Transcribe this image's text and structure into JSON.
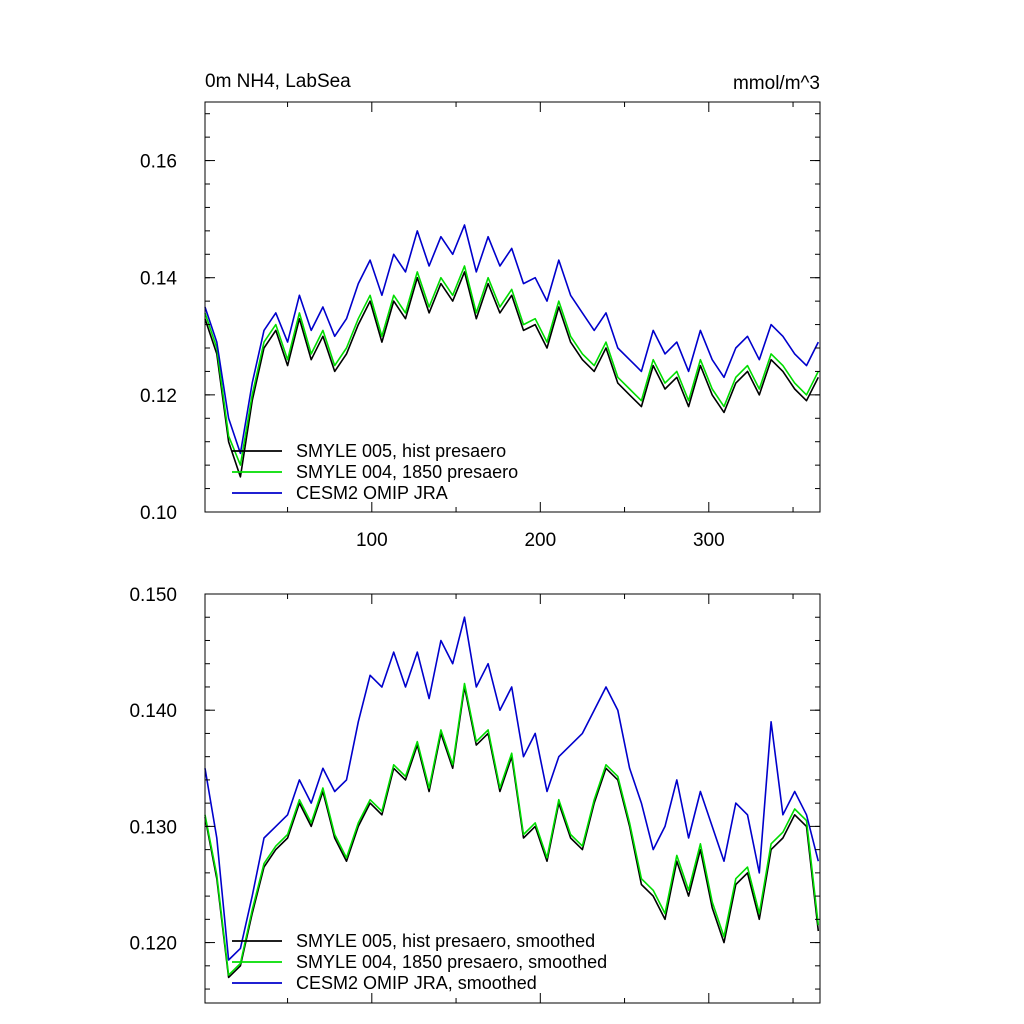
{
  "chart_data": [
    {
      "type": "line",
      "title": "0m NH4, LabSea",
      "units": "mmol/m^3",
      "xlabel": "",
      "ylabel": "",
      "xlim": [
        1,
        366
      ],
      "ylim": [
        0.1,
        0.17
      ],
      "yticks": [
        "0.10",
        "0.12",
        "0.14",
        "0.16"
      ],
      "xticks": [
        "100",
        "200",
        "300"
      ],
      "grid": false,
      "legend_position": "bottom-left",
      "series": [
        {
          "name": "SMYLE 005, hist presaero",
          "color": "#000000",
          "x": [
            1,
            8,
            15,
            22,
            29,
            36,
            43,
            50,
            57,
            64,
            71,
            78,
            85,
            92,
            99,
            106,
            113,
            120,
            127,
            134,
            141,
            148,
            155,
            162,
            169,
            176,
            183,
            190,
            197,
            204,
            211,
            218,
            225,
            232,
            239,
            246,
            253,
            260,
            267,
            274,
            281,
            288,
            295,
            302,
            309,
            316,
            323,
            330,
            337,
            344,
            351,
            358,
            365
          ],
          "values": [
            0.133,
            0.127,
            0.112,
            0.106,
            0.119,
            0.128,
            0.131,
            0.125,
            0.133,
            0.126,
            0.13,
            0.124,
            0.127,
            0.132,
            0.136,
            0.129,
            0.136,
            0.133,
            0.14,
            0.134,
            0.139,
            0.136,
            0.141,
            0.133,
            0.139,
            0.134,
            0.137,
            0.131,
            0.132,
            0.128,
            0.135,
            0.129,
            0.126,
            0.124,
            0.128,
            0.122,
            0.12,
            0.118,
            0.125,
            0.121,
            0.123,
            0.118,
            0.125,
            0.12,
            0.117,
            0.122,
            0.124,
            0.12,
            0.126,
            0.124,
            0.121,
            0.119,
            0.123
          ]
        },
        {
          "name": "SMYLE 004, 1850 presaero",
          "color": "#00dd00",
          "x": [
            1,
            8,
            15,
            22,
            29,
            36,
            43,
            50,
            57,
            64,
            71,
            78,
            85,
            92,
            99,
            106,
            113,
            120,
            127,
            134,
            141,
            148,
            155,
            162,
            169,
            176,
            183,
            190,
            197,
            204,
            211,
            218,
            225,
            232,
            239,
            246,
            253,
            260,
            267,
            274,
            281,
            288,
            295,
            302,
            309,
            316,
            323,
            330,
            337,
            344,
            351,
            358,
            365
          ],
          "values": [
            0.134,
            0.128,
            0.113,
            0.108,
            0.12,
            0.129,
            0.132,
            0.126,
            0.134,
            0.127,
            0.131,
            0.125,
            0.128,
            0.133,
            0.137,
            0.13,
            0.137,
            0.134,
            0.141,
            0.135,
            0.14,
            0.137,
            0.142,
            0.134,
            0.14,
            0.135,
            0.138,
            0.132,
            0.133,
            0.129,
            0.136,
            0.13,
            0.127,
            0.125,
            0.129,
            0.123,
            0.121,
            0.119,
            0.126,
            0.122,
            0.124,
            0.119,
            0.126,
            0.121,
            0.118,
            0.123,
            0.125,
            0.121,
            0.127,
            0.125,
            0.122,
            0.12,
            0.124
          ]
        },
        {
          "name": "CESM2 OMIP JRA",
          "color": "#0000cc",
          "x": [
            1,
            8,
            15,
            22,
            29,
            36,
            43,
            50,
            57,
            64,
            71,
            78,
            85,
            92,
            99,
            106,
            113,
            120,
            127,
            134,
            141,
            148,
            155,
            162,
            169,
            176,
            183,
            190,
            197,
            204,
            211,
            218,
            225,
            232,
            239,
            246,
            253,
            260,
            267,
            274,
            281,
            288,
            295,
            302,
            309,
            316,
            323,
            330,
            337,
            344,
            351,
            358,
            365
          ],
          "values": [
            0.135,
            0.129,
            0.116,
            0.11,
            0.122,
            0.131,
            0.134,
            0.129,
            0.137,
            0.131,
            0.135,
            0.13,
            0.133,
            0.139,
            0.143,
            0.137,
            0.144,
            0.141,
            0.148,
            0.142,
            0.147,
            0.144,
            0.149,
            0.141,
            0.147,
            0.142,
            0.145,
            0.139,
            0.14,
            0.136,
            0.143,
            0.137,
            0.134,
            0.131,
            0.134,
            0.128,
            0.126,
            0.124,
            0.131,
            0.127,
            0.129,
            0.124,
            0.131,
            0.126,
            0.123,
            0.128,
            0.13,
            0.126,
            0.132,
            0.13,
            0.127,
            0.125,
            0.129
          ]
        }
      ]
    },
    {
      "type": "line",
      "title": "",
      "xlabel": "",
      "ylabel": "",
      "xlim": [
        1,
        366
      ],
      "ylim": [
        0.1148,
        0.15
      ],
      "yticks": [
        "0.120",
        "0.130",
        "0.140",
        "0.150"
      ],
      "grid": false,
      "legend_position": "bottom-left",
      "series": [
        {
          "name": "SMYLE 005, hist presaero, smoothed",
          "color": "#000000",
          "x": [
            1,
            8,
            15,
            22,
            29,
            36,
            43,
            50,
            57,
            64,
            71,
            78,
            85,
            92,
            99,
            106,
            113,
            120,
            127,
            134,
            141,
            148,
            155,
            162,
            169,
            176,
            183,
            190,
            197,
            204,
            211,
            218,
            225,
            232,
            239,
            246,
            253,
            260,
            267,
            274,
            281,
            288,
            295,
            302,
            309,
            316,
            323,
            330,
            337,
            344,
            351,
            358,
            365
          ],
          "values": [
            0.1308,
            0.1255,
            0.117,
            0.118,
            0.1225,
            0.1265,
            0.128,
            0.129,
            0.132,
            0.13,
            0.133,
            0.129,
            0.127,
            0.13,
            0.132,
            0.131,
            0.135,
            0.134,
            0.137,
            0.133,
            0.138,
            0.135,
            0.142,
            0.137,
            0.138,
            0.133,
            0.136,
            0.129,
            0.13,
            0.127,
            0.132,
            0.129,
            0.128,
            0.132,
            0.135,
            0.134,
            0.13,
            0.125,
            0.124,
            0.122,
            0.127,
            0.124,
            0.128,
            0.123,
            0.12,
            0.125,
            0.126,
            0.122,
            0.128,
            0.129,
            0.131,
            0.13,
            0.121
          ]
        },
        {
          "name": "SMYLE 004, 1850 presaero, smoothed",
          "color": "#00dd00",
          "x": [
            1,
            8,
            15,
            22,
            29,
            36,
            43,
            50,
            57,
            64,
            71,
            78,
            85,
            92,
            99,
            106,
            113,
            120,
            127,
            134,
            141,
            148,
            155,
            162,
            169,
            176,
            183,
            190,
            197,
            204,
            211,
            218,
            225,
            232,
            239,
            246,
            253,
            260,
            267,
            274,
            281,
            288,
            295,
            302,
            309,
            316,
            323,
            330,
            337,
            344,
            351,
            358,
            365
          ],
          "values": [
            0.131,
            0.1258,
            0.1172,
            0.1182,
            0.1228,
            0.1268,
            0.1283,
            0.1293,
            0.1323,
            0.1303,
            0.1333,
            0.1293,
            0.1273,
            0.1303,
            0.1323,
            0.1313,
            0.1353,
            0.1343,
            0.1373,
            0.1333,
            0.1383,
            0.1353,
            0.1423,
            0.1373,
            0.1383,
            0.1333,
            0.1363,
            0.1293,
            0.1303,
            0.1273,
            0.1323,
            0.1293,
            0.1283,
            0.1323,
            0.1353,
            0.1343,
            0.1303,
            0.1255,
            0.1245,
            0.1225,
            0.1275,
            0.1245,
            0.1285,
            0.1235,
            0.1205,
            0.1255,
            0.1265,
            0.1225,
            0.1285,
            0.1295,
            0.1315,
            0.1305,
            0.1215
          ]
        },
        {
          "name": "CESM2 OMIP JRA, smoothed",
          "color": "#0000cc",
          "x": [
            1,
            8,
            15,
            22,
            29,
            36,
            43,
            50,
            57,
            64,
            71,
            78,
            85,
            92,
            99,
            106,
            113,
            120,
            127,
            134,
            141,
            148,
            155,
            162,
            169,
            176,
            183,
            190,
            197,
            204,
            211,
            218,
            225,
            232,
            239,
            246,
            253,
            260,
            267,
            274,
            281,
            288,
            295,
            302,
            309,
            316,
            323,
            330,
            337,
            344,
            351,
            358,
            365
          ],
          "values": [
            0.135,
            0.129,
            0.1185,
            0.1195,
            0.124,
            0.129,
            0.13,
            0.131,
            0.134,
            0.132,
            0.135,
            0.133,
            0.134,
            0.139,
            0.143,
            0.142,
            0.145,
            0.142,
            0.145,
            0.141,
            0.146,
            0.144,
            0.148,
            0.142,
            0.144,
            0.14,
            0.142,
            0.136,
            0.138,
            0.133,
            0.136,
            0.137,
            0.138,
            0.14,
            0.142,
            0.14,
            0.135,
            0.132,
            0.128,
            0.13,
            0.134,
            0.129,
            0.133,
            0.13,
            0.127,
            0.132,
            0.131,
            0.126,
            0.139,
            0.131,
            0.133,
            0.131,
            0.127
          ]
        }
      ]
    }
  ]
}
